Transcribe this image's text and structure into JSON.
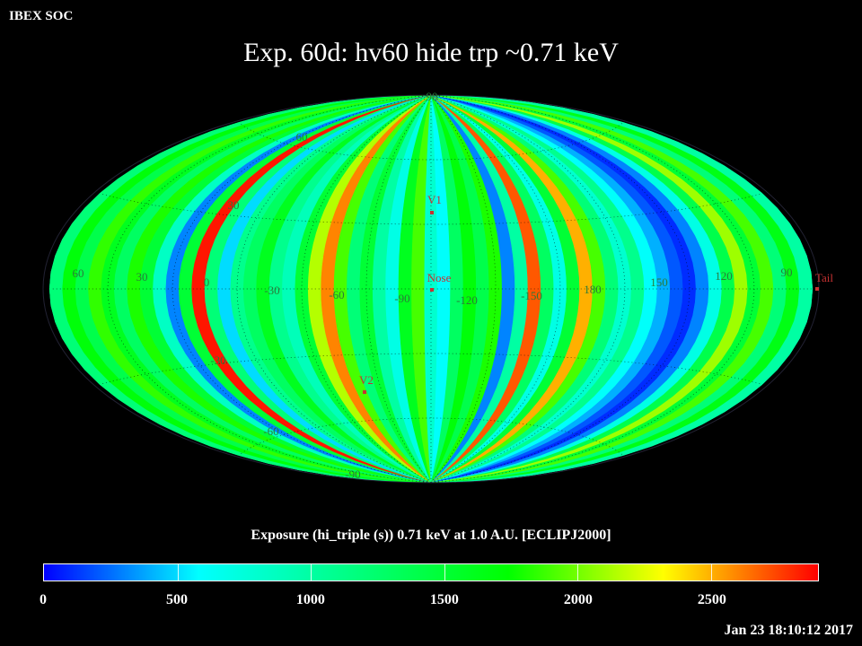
{
  "header": {
    "corner_label": "IBEX SOC",
    "title": "Exp.   60d: hv60 hide trp ~0.71 keV"
  },
  "map": {
    "projection": "aitoff",
    "frame": "ECLIPJ2000",
    "grid_visible": true,
    "longitude_labels": [
      "60",
      "30",
      "0",
      "-30",
      "-60",
      "-90",
      "-120",
      "-150",
      "180",
      "150",
      "120",
      "90"
    ],
    "latitude_labels": [
      "90",
      "60",
      "30",
      "-30",
      "-60",
      "-90"
    ],
    "markers": [
      {
        "name": "V1",
        "color": "#c83232"
      },
      {
        "name": "Nose",
        "color": "#c83232"
      },
      {
        "name": "V2",
        "color": "#c83232"
      },
      {
        "name": "Tail",
        "color": "#c83232"
      }
    ]
  },
  "chart_data": {
    "type": "heatmap",
    "title": "Exp.   60d: hv60 hide trp ~0.71 keV",
    "quantity": "Exposure (hi_triple (s))  0.71 keV at 1.0 A.U. [ECLIPJ2000]",
    "colorbar": {
      "min": 0,
      "max": 2900,
      "ticks": [
        0,
        500,
        1000,
        1500,
        2000,
        2500
      ],
      "colors": [
        "#0000ff",
        "#00ffff",
        "#00ff80",
        "#00ff00",
        "#ffff00",
        "#ff0000"
      ]
    },
    "exposure_bands": [
      {
        "lon": 90,
        "value": 900
      },
      {
        "lon": 84,
        "value": 1200
      },
      {
        "lon": 78,
        "value": 1700
      },
      {
        "lon": 72,
        "value": 1400
      },
      {
        "lon": 66,
        "value": 1850
      },
      {
        "lon": 60,
        "value": 1600
      },
      {
        "lon": 54,
        "value": 1300
      },
      {
        "lon": 48,
        "value": 1800
      },
      {
        "lon": 42,
        "value": 1500
      },
      {
        "lon": 36,
        "value": 850
      },
      {
        "lon": 30,
        "value": 300
      },
      {
        "lon": 24,
        "value": 1500
      },
      {
        "lon": 18,
        "value": 2850
      },
      {
        "lon": 12,
        "value": 1200
      },
      {
        "lon": 6,
        "value": 500
      },
      {
        "lon": 0,
        "value": 1100
      },
      {
        "lon": -6,
        "value": 1300
      },
      {
        "lon": -12,
        "value": 1600
      },
      {
        "lon": -18,
        "value": 1100
      },
      {
        "lon": -24,
        "value": 900
      },
      {
        "lon": -30,
        "value": 1500
      },
      {
        "lon": -36,
        "value": 2150
      },
      {
        "lon": -42,
        "value": 2600
      },
      {
        "lon": -48,
        "value": 1900
      },
      {
        "lon": -54,
        "value": 1200
      },
      {
        "lon": -60,
        "value": 1500
      },
      {
        "lon": -66,
        "value": 1000
      },
      {
        "lon": -72,
        "value": 700
      },
      {
        "lon": -78,
        "value": 1600
      },
      {
        "lon": -84,
        "value": 1900
      },
      {
        "lon": -90,
        "value": 800
      },
      {
        "lon": -96,
        "value": 600
      },
      {
        "lon": -102,
        "value": 1300
      },
      {
        "lon": -108,
        "value": 1700
      },
      {
        "lon": -114,
        "value": 1400
      },
      {
        "lon": -120,
        "value": 1800
      },
      {
        "lon": -126,
        "value": 300
      },
      {
        "lon": -132,
        "value": 1000
      },
      {
        "lon": -138,
        "value": 2700
      },
      {
        "lon": -144,
        "value": 1300
      },
      {
        "lon": -150,
        "value": 700
      },
      {
        "lon": -156,
        "value": 1500
      },
      {
        "lon": -162,
        "value": 2500
      },
      {
        "lon": -168,
        "value": 1900
      },
      {
        "lon": -174,
        "value": 1200
      },
      {
        "lon": 180,
        "value": 800
      },
      {
        "lon": 174,
        "value": 1100
      },
      {
        "lon": 168,
        "value": 600
      },
      {
        "lon": 162,
        "value": 400
      },
      {
        "lon": 156,
        "value": 200
      },
      {
        "lon": 150,
        "value": 100
      },
      {
        "lon": 144,
        "value": 300
      },
      {
        "lon": 138,
        "value": 700
      },
      {
        "lon": 132,
        "value": 1400
      },
      {
        "lon": 126,
        "value": 2100
      },
      {
        "lon": 120,
        "value": 1500
      },
      {
        "lon": 114,
        "value": 1900
      },
      {
        "lon": 108,
        "value": 1200
      },
      {
        "lon": 102,
        "value": 1650
      },
      {
        "lon": 96,
        "value": 1000
      }
    ]
  },
  "footer": {
    "caption": "Exposure (hi_triple (s))  0.71 keV at 1.0 A.U. [ECLIPJ2000]",
    "timestamp": "Jan 23 18:10:12 2017"
  }
}
